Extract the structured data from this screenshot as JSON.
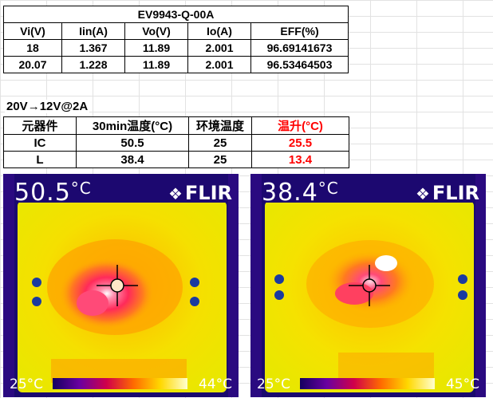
{
  "efficiency_table": {
    "title": "EV9943-Q-00A",
    "headers": [
      "Vi(V)",
      "Iin(A)",
      "Vo(V)",
      "Io(A)",
      "EFF(%)"
    ],
    "rows": [
      [
        "18",
        "1.367",
        "11.89",
        "2.001",
        "96.69141673"
      ],
      [
        "20.07",
        "1.228",
        "11.89",
        "2.001",
        "96.53464503"
      ]
    ]
  },
  "condition_label": "20V→12V@2A",
  "temperature_table": {
    "headers": [
      "元器件",
      "30min温度(°C)",
      "环境温度",
      "温升(°C)"
    ],
    "rows": [
      [
        "IC",
        "50.5",
        "25",
        "25.5"
      ],
      [
        "L",
        "38.4",
        "25",
        "13.4"
      ]
    ]
  },
  "thermal_images": [
    {
      "readout": "50.5",
      "unit": "°C",
      "brand": "FLIR",
      "scale_min": "25°C",
      "scale_max": "44°C"
    },
    {
      "readout": "38.4",
      "unit": "°C",
      "brand": "FLIR",
      "scale_min": "25°C",
      "scale_max": "45°C"
    }
  ],
  "colors": {
    "accent_red": "#ff0000",
    "hot_spot": "#ff2a5a",
    "background_yellow": "#f7e600"
  }
}
